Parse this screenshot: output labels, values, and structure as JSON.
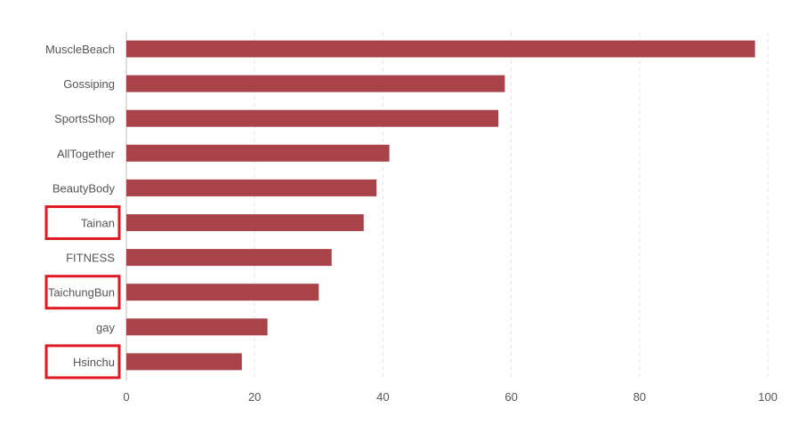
{
  "chart_data": {
    "type": "bar",
    "orientation": "horizontal",
    "categories": [
      "MuscleBeach",
      "Gossiping",
      "SportsShop",
      "AllTogether",
      "BeautyBody",
      "Tainan",
      "FITNESS",
      "TaichungBun",
      "gay",
      "Hsinchu"
    ],
    "values": [
      98,
      59,
      58,
      41,
      39,
      37,
      32,
      30,
      22,
      18
    ],
    "xlim": [
      0,
      100
    ],
    "xticks": [
      "0",
      "20",
      "40",
      "60",
      "80",
      "100"
    ],
    "grid": true,
    "bar_color": "#a8434a",
    "highlighted_categories": [
      "Tainan",
      "TaichungBun",
      "Hsinchu"
    ],
    "highlight_color": "#e01a22"
  }
}
